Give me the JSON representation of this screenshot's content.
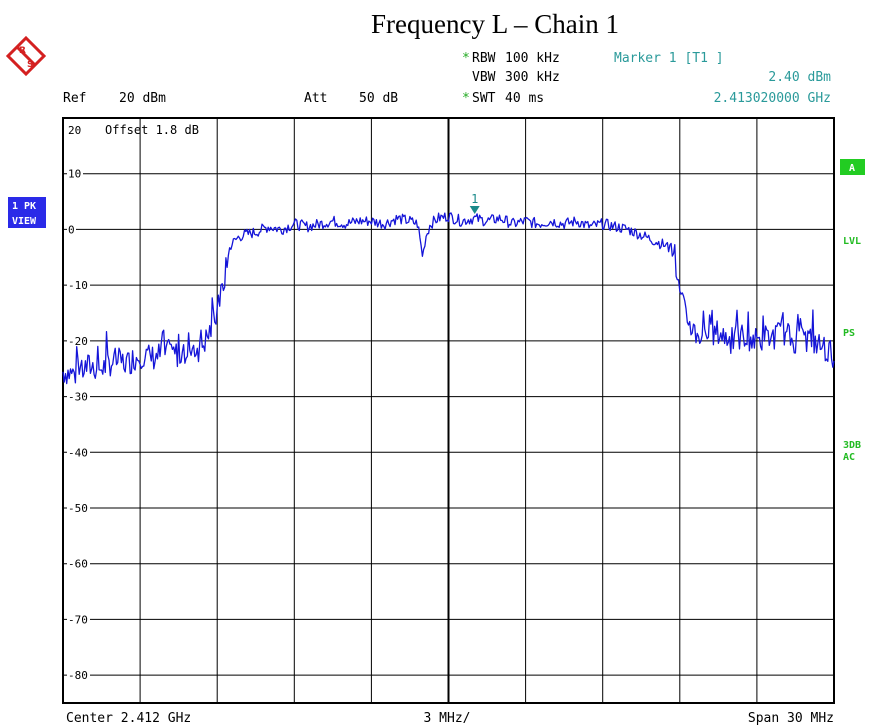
{
  "title": "Frequency L – Chain 1",
  "header": {
    "ref": "Ref",
    "ref_value": "20 dBm",
    "att": "Att",
    "att_value": "50 dB",
    "rbw_star": "*",
    "rbw": "RBW",
    "rbw_value": "100 kHz",
    "vbw": "VBW",
    "vbw_value": "300 kHz",
    "swt_star": "*",
    "swt": "SWT",
    "swt_value": "40 ms",
    "marker_label": "Marker 1 [T1 ]",
    "marker_level": "2.40 dBm",
    "marker_freq": "2.413020000 GHz"
  },
  "offset_label": "Offset  1.8 dB",
  "left_badges": [
    "1 PK",
    "VIEW"
  ],
  "right_labels": {
    "a_badge": "A",
    "lvl": "LVL",
    "ps": "PS",
    "db3": "3DB",
    "ac": "AC"
  },
  "footer": {
    "center": "Center 2.412 GHz",
    "per_div": "3 MHz/",
    "span": "Span 30 MHz"
  },
  "colors": {
    "trace": "#1515d8",
    "grid": "#000000",
    "marker": "#1a8a8a",
    "info": "#2a9a9a",
    "badge_blue": "#2a2ae8",
    "badge_green": "#22cc22",
    "text_green": "#22bb22",
    "star_green": "#22aa22"
  },
  "chart_data": {
    "type": "line",
    "xlabel": "",
    "ylabel": "",
    "xlim": [
      2397,
      2427
    ],
    "ylim": [
      -85,
      20
    ],
    "x_unit": "MHz",
    "y_unit": "dBm",
    "y_tick_labels": [
      "20",
      "10",
      "0",
      "-10",
      "-20",
      "-30",
      "-40",
      "-50",
      "-60",
      "-70",
      "-80"
    ],
    "y_tick_values": [
      20,
      10,
      0,
      -10,
      -20,
      -30,
      -40,
      -50,
      -60,
      -70,
      -80
    ],
    "marker": {
      "label": "1",
      "x": 2413.02,
      "y": 2.4
    },
    "series": [
      {
        "x": [
          2397.0,
          2397.5,
          2398.0,
          2398.5,
          2399.0,
          2399.5,
          2400.0,
          2400.5,
          2401.0,
          2401.5,
          2402.0,
          2402.3,
          2402.6,
          2402.8,
          2403.0,
          2403.2,
          2403.5,
          2403.8,
          2404.0,
          2404.5,
          2405.0,
          2405.5,
          2406.0,
          2406.5,
          2407.0,
          2407.5,
          2408.0,
          2408.5,
          2409.0,
          2409.5,
          2410.0,
          2410.5,
          2410.8,
          2410.9,
          2411.0,
          2411.1,
          2411.3,
          2411.6,
          2412.0,
          2412.5,
          2413.0,
          2413.5,
          2414.0,
          2414.5,
          2415.0,
          2415.5,
          2416.0,
          2416.5,
          2417.0,
          2417.5,
          2418.0,
          2418.5,
          2419.0,
          2419.5,
          2420.0,
          2420.5,
          2420.8,
          2421.0,
          2421.2,
          2421.4,
          2421.6,
          2422.0,
          2422.5,
          2423.0,
          2423.5,
          2424.0,
          2424.5,
          2425.0,
          2425.5,
          2426.0,
          2426.5,
          2427.0
        ],
        "y": [
          -25.5,
          -26.0,
          -24.5,
          -25.0,
          -23.5,
          -24.0,
          -22.5,
          -23.0,
          -22.0,
          -22.5,
          -21.0,
          -21.5,
          -19.5,
          -17.5,
          -15.0,
          -11.0,
          -3.0,
          -1.5,
          -1.0,
          -0.5,
          0.5,
          0.0,
          1.0,
          0.5,
          1.0,
          1.5,
          1.0,
          1.5,
          1.5,
          1.0,
          2.0,
          1.5,
          1.0,
          -2.0,
          -5.0,
          -1.5,
          1.0,
          2.0,
          2.4,
          1.5,
          2.0,
          1.5,
          2.0,
          1.0,
          1.5,
          1.0,
          1.5,
          1.0,
          1.5,
          0.5,
          1.0,
          0.5,
          0.0,
          -1.0,
          -2.0,
          -3.0,
          -5.0,
          -12.0,
          -15.0,
          -17.0,
          -18.5,
          -19.5,
          -18.5,
          -20.0,
          -19.0,
          -20.0,
          -19.5,
          -18.5,
          -20.0,
          -19.5,
          -21.0,
          -22.5
        ]
      }
    ]
  }
}
